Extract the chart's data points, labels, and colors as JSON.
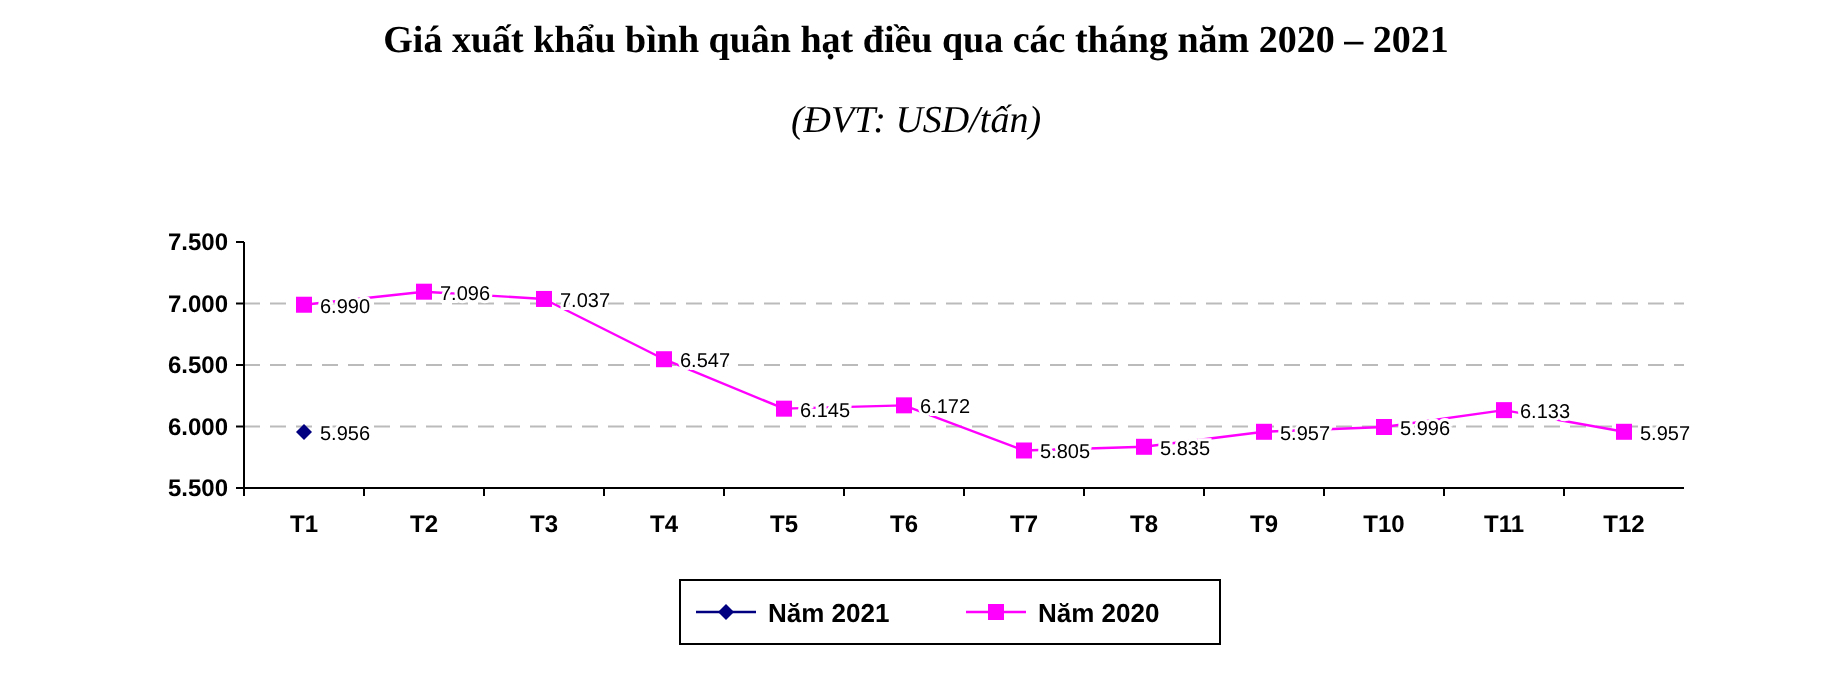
{
  "chart_data": {
    "type": "line",
    "title": "Giá xuất khẩu bình quân hạt điều qua các tháng năm 2020 – 2021",
    "subtitle": "(ĐVT: USD/tấn)",
    "categories": [
      "T1",
      "T2",
      "T3",
      "T4",
      "T5",
      "T6",
      "T7",
      "T8",
      "T9",
      "T10",
      "T11",
      "T12"
    ],
    "series": [
      {
        "name": "Năm 2021",
        "color": "#000080",
        "marker": "diamond",
        "values": [
          5956,
          null,
          null,
          null,
          null,
          null,
          null,
          null,
          null,
          null,
          null,
          null
        ],
        "value_labels": [
          "5.956",
          null,
          null,
          null,
          null,
          null,
          null,
          null,
          null,
          null,
          null,
          null
        ]
      },
      {
        "name": "Năm 2020",
        "color": "#ff00ff",
        "marker": "square",
        "values": [
          6990,
          7096,
          7037,
          6547,
          6145,
          6172,
          5805,
          5835,
          5957,
          5996,
          6133,
          5957
        ],
        "value_labels": [
          "6.990",
          "7.096",
          "7.037",
          "6.547",
          "6.145",
          "6.172",
          "5.805",
          "5.835",
          "5.957",
          "5.996",
          "6.133",
          "5.957"
        ]
      }
    ],
    "ylim": [
      5500,
      7500
    ],
    "yticks": [
      {
        "value": 5500,
        "label": "5.500"
      },
      {
        "value": 6000,
        "label": "6.000"
      },
      {
        "value": 6500,
        "label": "6.500"
      },
      {
        "value": 7000,
        "label": "7.000"
      },
      {
        "value": 7500,
        "label": "7.500"
      }
    ],
    "grid": "y",
    "legend": "bottom"
  }
}
